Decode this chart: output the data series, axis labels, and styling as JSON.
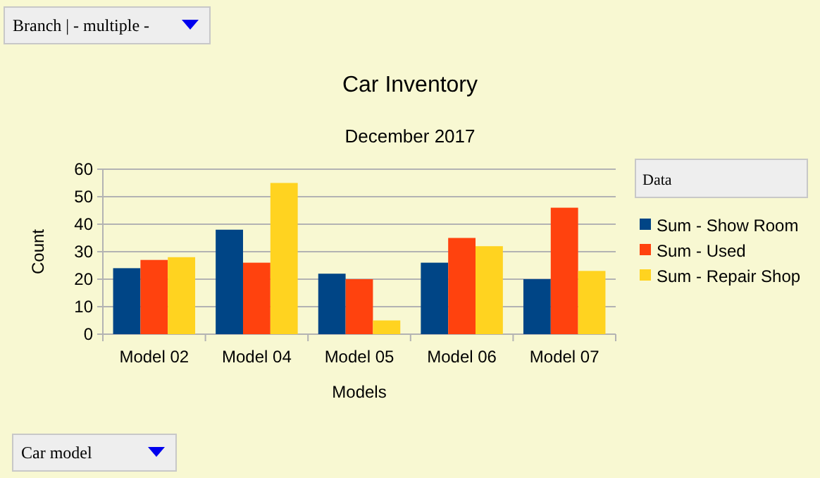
{
  "chart_data": {
    "type": "bar",
    "title": "Car Inventory",
    "subtitle": "December 2017",
    "xlabel": "Models",
    "ylabel": "Count",
    "legend_title": "Data",
    "categories": [
      "Model 02",
      "Model 04",
      "Model 05",
      "Model 06",
      "Model 07"
    ],
    "series": [
      {
        "name": "Sum - Show Room",
        "color": "#004586",
        "values": [
          24,
          38,
          22,
          26,
          20
        ]
      },
      {
        "name": "Sum - Used",
        "color": "#ff420e",
        "values": [
          27,
          26,
          20,
          35,
          46
        ]
      },
      {
        "name": "Sum - Repair Shop",
        "color": "#ffd320",
        "values": [
          28,
          55,
          5,
          32,
          23
        ]
      }
    ],
    "ylim": [
      0,
      60
    ],
    "yticks": [
      0,
      10,
      20,
      30,
      40,
      50,
      60
    ],
    "grid": "y",
    "legend": "right",
    "annotations": [
      "Branch | - multiple -",
      "Car model"
    ]
  }
}
